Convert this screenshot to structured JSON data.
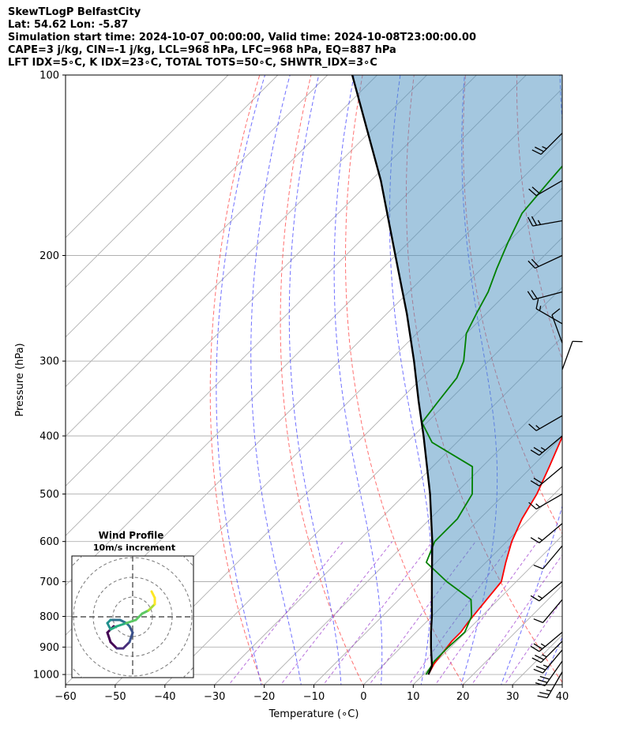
{
  "header": {
    "line1": "SkewTLogP BelfastCity",
    "line2": "Lat: 54.62   Lon: -5.87",
    "line3": "Simulation start time: 2024-10-07_00:00:00, Valid time: 2024-10-08T23:00:00.00",
    "line4": "CAPE=3 j/kg, CIN=-1 j/kg, LCL=968 hPa, LFC=968 hPa, EQ=887 hPa",
    "line5": "LFT IDX=5∘C, K IDX=23∘C, TOTAL TOTS=50∘C, SHWTR_IDX=3∘C"
  },
  "chart_data": {
    "type": "line",
    "subtype": "skew-t log-p",
    "xlabel": "Temperature (∘C)",
    "ylabel": "Pressure (hPa)",
    "xlim": [
      -60,
      40
    ],
    "ylim": [
      1040,
      100
    ],
    "y_scale": "log",
    "x_ticks": [
      -60,
      -50,
      -40,
      -30,
      -20,
      -10,
      0,
      10,
      20,
      30,
      40
    ],
    "x_tick_labels": [
      "−60",
      "−50",
      "−40",
      "−30",
      "−20",
      "−10",
      "0",
      "10",
      "20",
      "30",
      "40"
    ],
    "y_ticks": [
      1000,
      900,
      800,
      700,
      600,
      500,
      400,
      300,
      200,
      100
    ],
    "grid": true,
    "series": [
      {
        "key": "temperature",
        "color": "#ff0000",
        "points": [
          [
            1000,
            11
          ],
          [
            960,
            10
          ],
          [
            920,
            9.5
          ],
          [
            880,
            9
          ],
          [
            850,
            9
          ],
          [
            820,
            8.5
          ],
          [
            700,
            7
          ],
          [
            650,
            4
          ],
          [
            600,
            1
          ],
          [
            550,
            -1.5
          ],
          [
            500,
            -3.5
          ],
          [
            450,
            -6.5
          ],
          [
            400,
            -10
          ],
          [
            350,
            -14
          ],
          [
            300,
            -17.5
          ],
          [
            290,
            -18.7
          ],
          [
            270,
            -18
          ],
          [
            250,
            -16.5
          ],
          [
            230,
            -13.5
          ],
          [
            210,
            -9
          ],
          [
            190,
            -5
          ],
          [
            170,
            -1
          ],
          [
            150,
            2
          ],
          [
            130,
            5
          ],
          [
            115,
            8
          ],
          [
            100,
            11
          ]
        ]
      },
      {
        "key": "dewpoint",
        "color": "#008000",
        "points": [
          [
            1000,
            10.5
          ],
          [
            950,
            9.5
          ],
          [
            900,
            9.5
          ],
          [
            850,
            9.8
          ],
          [
            800,
            8
          ],
          [
            750,
            4.5
          ],
          [
            700,
            -4
          ],
          [
            650,
            -12
          ],
          [
            600,
            -14.5
          ],
          [
            550,
            -14.5
          ],
          [
            500,
            -16.5
          ],
          [
            450,
            -22
          ],
          [
            410,
            -35
          ],
          [
            380,
            -41
          ],
          [
            350,
            -42
          ],
          [
            320,
            -43
          ],
          [
            300,
            -45
          ],
          [
            270,
            -50
          ],
          [
            250,
            -52
          ],
          [
            230,
            -54
          ],
          [
            210,
            -57
          ],
          [
            190,
            -60
          ],
          [
            170,
            -63
          ],
          [
            150,
            -64
          ],
          [
            130,
            -65
          ],
          [
            115,
            -66.5
          ],
          [
            100,
            -68
          ]
        ]
      },
      {
        "key": "parcel",
        "color": "#000000",
        "points": [
          [
            1000,
            11
          ],
          [
            968,
            10
          ],
          [
            900,
            6
          ],
          [
            850,
            3
          ],
          [
            800,
            0
          ],
          [
            700,
            -7
          ],
          [
            600,
            -15
          ],
          [
            500,
            -25
          ],
          [
            400,
            -38
          ],
          [
            350,
            -46
          ],
          [
            300,
            -55
          ],
          [
            250,
            -66
          ],
          [
            200,
            -80
          ],
          [
            150,
            -98
          ],
          [
            100,
            -125
          ]
        ]
      }
    ],
    "shaded_region": {
      "between": [
        "temperature",
        "parcel"
      ],
      "color": "#4a8fc0",
      "opacity": 0.5
    },
    "dry_adiabats_theta_K": [
      250,
      270,
      290,
      310,
      330,
      350,
      370,
      390,
      410,
      430,
      450
    ],
    "moist_adiabats_start_C": [
      -20,
      -12,
      -4,
      4,
      12,
      20,
      28,
      36
    ],
    "mixing_ratio_lines": [
      0.4,
      1,
      2,
      4,
      7,
      10,
      16,
      24
    ],
    "isotherms_C": [
      -150,
      -140,
      -130,
      -120,
      -110,
      -100,
      -90,
      -80,
      -70,
      -60,
      -50,
      -40,
      -30,
      -20,
      -10,
      0,
      10,
      20,
      30,
      40
    ],
    "wind_barbs": [
      [
        125,
        225,
        25
      ],
      [
        150,
        240,
        20
      ],
      [
        175,
        260,
        25
      ],
      [
        200,
        245,
        22
      ],
      [
        230,
        255,
        20
      ],
      [
        260,
        300,
        15
      ],
      [
        280,
        340,
        10
      ],
      [
        310,
        20,
        10
      ],
      [
        370,
        240,
        15
      ],
      [
        400,
        230,
        25
      ],
      [
        450,
        230,
        20
      ],
      [
        500,
        240,
        18
      ],
      [
        560,
        230,
        15
      ],
      [
        610,
        220,
        12
      ],
      [
        700,
        230,
        15
      ],
      [
        750,
        220,
        10
      ],
      [
        850,
        230,
        25
      ],
      [
        880,
        225,
        25
      ],
      [
        910,
        220,
        25
      ],
      [
        950,
        215,
        30
      ],
      [
        990,
        210,
        25
      ]
    ],
    "hodograph": {
      "title": "Wind Profile",
      "subtitle": "10m/s increment",
      "rings": 3,
      "points": [
        [
          -6,
          -3
        ],
        [
          -8,
          -5
        ],
        [
          -7,
          -8
        ],
        [
          -5,
          -10
        ],
        [
          -3,
          -10
        ],
        [
          -1,
          -8
        ],
        [
          0,
          -5
        ],
        [
          -1,
          -3
        ],
        [
          -2,
          -2
        ],
        [
          -4,
          -1
        ],
        [
          -7,
          -1
        ],
        [
          -8,
          -2
        ],
        [
          -7,
          -4
        ],
        [
          -5,
          -3
        ],
        [
          -2,
          -2
        ],
        [
          1,
          -1
        ],
        [
          3,
          1
        ],
        [
          5,
          2
        ],
        [
          6,
          3
        ],
        [
          7,
          4
        ],
        [
          7,
          6
        ],
        [
          6,
          8
        ]
      ]
    }
  }
}
